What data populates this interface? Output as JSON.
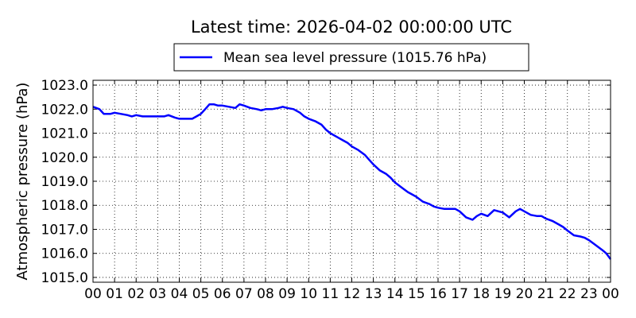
{
  "chart_data": {
    "type": "line",
    "title": "Latest time: 2026-04-02 00:00:00 UTC",
    "xlabel": "",
    "ylabel": "Atmospheric pressure (hPa)",
    "xlim": [
      0,
      24
    ],
    "ylim": [
      1014.8,
      1023.2
    ],
    "grid": true,
    "legend_position": "top-center",
    "x_tick_labels": [
      "00",
      "01",
      "02",
      "03",
      "04",
      "05",
      "06",
      "07",
      "08",
      "09",
      "10",
      "11",
      "12",
      "13",
      "14",
      "15",
      "16",
      "17",
      "18",
      "19",
      "20",
      "21",
      "22",
      "23",
      "00"
    ],
    "y_ticks": [
      1015.0,
      1016.0,
      1017.0,
      1018.0,
      1019.0,
      1020.0,
      1021.0,
      1022.0,
      1023.0
    ],
    "y_tick_labels": [
      "1015.0",
      "1016.0",
      "1017.0",
      "1018.0",
      "1019.0",
      "1020.0",
      "1021.0",
      "1022.0",
      "1023.0"
    ],
    "series": [
      {
        "name": "Mean sea level pressure (1015.76 hPa)",
        "color": "#0000ff",
        "x": [
          0,
          0.3,
          0.5,
          0.8,
          1.0,
          1.3,
          1.6,
          1.8,
          2.0,
          2.3,
          2.5,
          2.8,
          3.0,
          3.3,
          3.5,
          3.8,
          4.0,
          4.3,
          4.6,
          4.8,
          5.0,
          5.2,
          5.4,
          5.6,
          5.8,
          6.0,
          6.3,
          6.6,
          6.8,
          7.0,
          7.3,
          7.6,
          7.8,
          8.0,
          8.3,
          8.6,
          8.8,
          9.0,
          9.3,
          9.6,
          9.8,
          10.0,
          10.3,
          10.6,
          10.8,
          11.0,
          11.3,
          11.6,
          11.8,
          12.0,
          12.3,
          12.6,
          12.8,
          13.0,
          13.3,
          13.6,
          13.8,
          14.0,
          14.3,
          14.6,
          14.8,
          15.0,
          15.3,
          15.6,
          15.8,
          16.0,
          16.3,
          16.6,
          16.8,
          17.0,
          17.3,
          17.6,
          17.8,
          18.0,
          18.3,
          18.6,
          18.8,
          19.0,
          19.3,
          19.6,
          19.8,
          20.0,
          20.3,
          20.6,
          20.8,
          21.0,
          21.3,
          21.6,
          21.8,
          22.0,
          22.3,
          22.6,
          22.8,
          23.0,
          23.3,
          23.6,
          23.8,
          24.0
        ],
        "y": [
          1022.1,
          1022.0,
          1021.8,
          1021.8,
          1021.85,
          1021.8,
          1021.75,
          1021.7,
          1021.75,
          1021.7,
          1021.7,
          1021.7,
          1021.7,
          1021.7,
          1021.75,
          1021.65,
          1021.6,
          1021.6,
          1021.6,
          1021.7,
          1021.8,
          1022.0,
          1022.2,
          1022.2,
          1022.15,
          1022.15,
          1022.1,
          1022.05,
          1022.2,
          1022.15,
          1022.05,
          1022.0,
          1021.95,
          1022.0,
          1022.0,
          1022.05,
          1022.1,
          1022.05,
          1022.0,
          1021.85,
          1021.7,
          1021.6,
          1021.5,
          1021.35,
          1021.15,
          1021.0,
          1020.85,
          1020.7,
          1020.6,
          1020.45,
          1020.3,
          1020.1,
          1019.9,
          1019.7,
          1019.45,
          1019.3,
          1019.15,
          1018.95,
          1018.75,
          1018.55,
          1018.45,
          1018.35,
          1018.15,
          1018.05,
          1017.95,
          1017.9,
          1017.85,
          1017.85,
          1017.85,
          1017.75,
          1017.5,
          1017.4,
          1017.55,
          1017.65,
          1017.55,
          1017.8,
          1017.75,
          1017.7,
          1017.5,
          1017.75,
          1017.85,
          1017.75,
          1017.6,
          1017.55,
          1017.55,
          1017.45,
          1017.35,
          1017.2,
          1017.1,
          1016.95,
          1016.75,
          1016.7,
          1016.65,
          1016.55,
          1016.35,
          1016.15,
          1016.0,
          1015.76
        ]
      }
    ]
  }
}
